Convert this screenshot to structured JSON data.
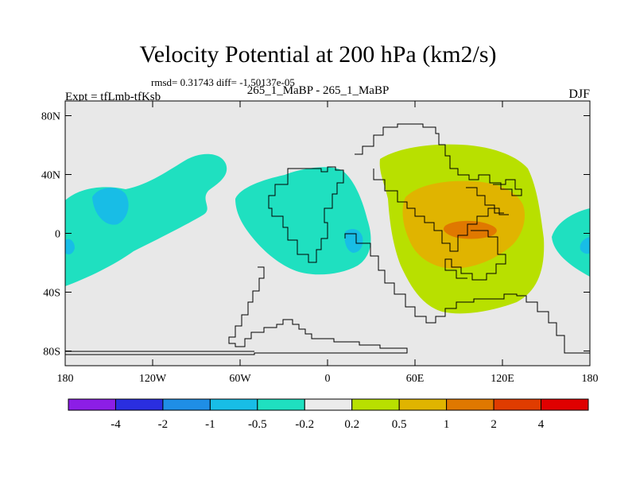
{
  "title": "Velocity Potential at 200 hPa (km2/s)",
  "stats_line": "rmsd= 0.31743 diff= -1.50137e-05",
  "left_label": "Expt = tfLmb-tfKsb",
  "center_label": "265_1_MaBP - 265_1_MaBP",
  "right_label": "DJF",
  "lat_ticks": [
    {
      "value": 80,
      "label": "80N"
    },
    {
      "value": 40,
      "label": "40N"
    },
    {
      "value": 0,
      "label": "0"
    },
    {
      "value": -40,
      "label": "40S"
    },
    {
      "value": -80,
      "label": "80S"
    }
  ],
  "lon_ticks": [
    {
      "value": -180,
      "label": "180"
    },
    {
      "value": -120,
      "label": "120W"
    },
    {
      "value": -60,
      "label": "60W"
    },
    {
      "value": 0,
      "label": "0"
    },
    {
      "value": 60,
      "label": "60E"
    },
    {
      "value": 120,
      "label": "120E"
    },
    {
      "value": 180,
      "label": "180"
    }
  ],
  "colorbar": {
    "colors": [
      "#8c1ee6",
      "#2a2ee0",
      "#1f8ee6",
      "#18bde6",
      "#1fe0c0",
      "#ebebeb",
      "#b8e000",
      "#e0b400",
      "#e07800",
      "#e03c00",
      "#e00000"
    ],
    "labels": [
      "-4",
      "-2",
      "-1",
      "-0.5",
      "-0.2",
      "0.2",
      "0.5",
      "1",
      "2",
      "4"
    ]
  },
  "background_color": "#e8e8e8"
}
